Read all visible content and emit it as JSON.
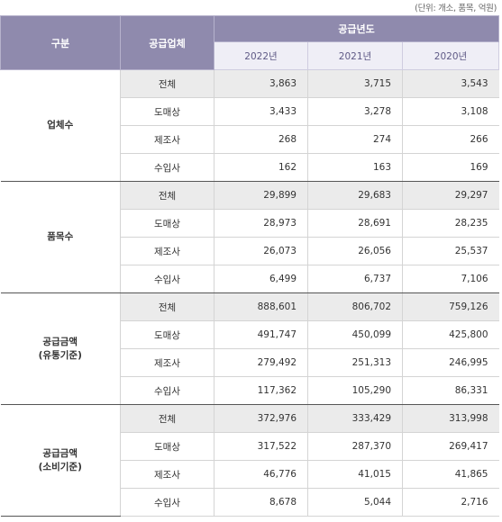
{
  "unit_note": "(단위: 개소, 품목, 억원)",
  "header": {
    "category": "구분",
    "supplier_type": "공급업체",
    "year_group": "공급년도",
    "years": [
      "2022년",
      "2021년",
      "2020년"
    ]
  },
  "groups": [
    {
      "category_line1": "업체수",
      "category_line2": "",
      "rows": [
        {
          "type": "전체",
          "values": [
            "3,863",
            "3,715",
            "3,543"
          ]
        },
        {
          "type": "도매상",
          "values": [
            "3,433",
            "3,278",
            "3,108"
          ]
        },
        {
          "type": "제조사",
          "values": [
            "268",
            "274",
            "266"
          ]
        },
        {
          "type": "수입사",
          "values": [
            "162",
            "163",
            "169"
          ]
        }
      ]
    },
    {
      "category_line1": "품목수",
      "category_line2": "",
      "rows": [
        {
          "type": "전체",
          "values": [
            "29,899",
            "29,683",
            "29,297"
          ]
        },
        {
          "type": "도매상",
          "values": [
            "28,973",
            "28,691",
            "28,235"
          ]
        },
        {
          "type": "제조사",
          "values": [
            "26,073",
            "26,056",
            "25,537"
          ]
        },
        {
          "type": "수입사",
          "values": [
            "6,499",
            "6,737",
            "7,106"
          ]
        }
      ]
    },
    {
      "category_line1": "공급금액",
      "category_line2": "(유통기준)",
      "rows": [
        {
          "type": "전체",
          "values": [
            "888,601",
            "806,702",
            "759,126"
          ]
        },
        {
          "type": "도매상",
          "values": [
            "491,747",
            "450,099",
            "425,800"
          ]
        },
        {
          "type": "제조사",
          "values": [
            "279,492",
            "251,313",
            "246,995"
          ]
        },
        {
          "type": "수입사",
          "values": [
            "117,362",
            "105,290",
            "86,331"
          ]
        }
      ]
    },
    {
      "category_line1": "공급금액",
      "category_line2": "(소비기준)",
      "rows": [
        {
          "type": "전체",
          "values": [
            "372,976",
            "333,429",
            "313,998"
          ]
        },
        {
          "type": "도매상",
          "values": [
            "317,522",
            "287,370",
            "269,417"
          ]
        },
        {
          "type": "제조사",
          "values": [
            "46,776",
            "41,015",
            "41,865"
          ]
        },
        {
          "type": "수입사",
          "values": [
            "8,678",
            "5,044",
            "2,716"
          ]
        }
      ]
    }
  ]
}
